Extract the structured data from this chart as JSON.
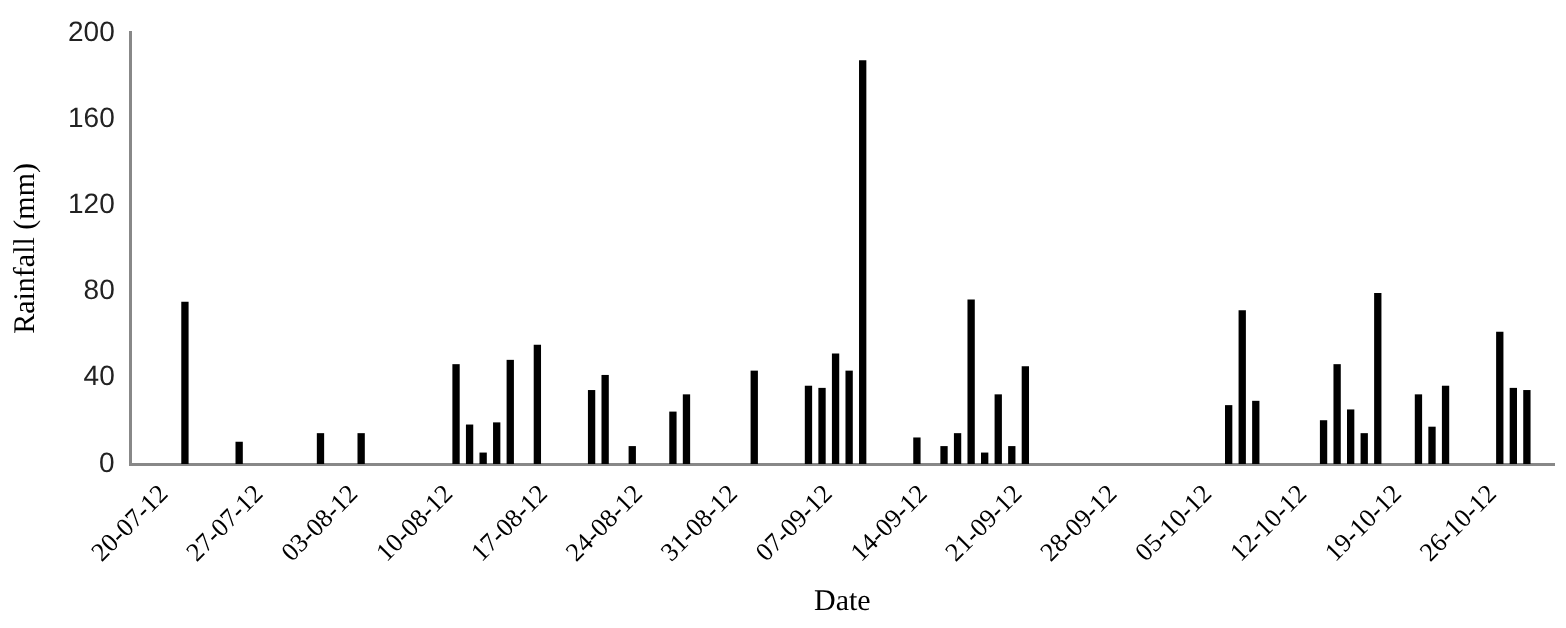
{
  "chart_data": {
    "type": "bar",
    "xlabel": "Date",
    "ylabel": "Rainfall (mm)",
    "x": [
      "--07-24",
      "--07-28",
      "--08-03",
      "--08-06",
      "--08-13",
      "--08-14",
      "--08-15",
      "--08-16",
      "--08-17",
      "--08-19",
      "--08-23",
      "--08-24",
      "--08-26",
      "--08-29",
      "--08-30",
      "--09-04",
      "--09-08",
      "--09-09",
      "--09-10",
      "--09-11",
      "--09-12",
      "--09-16",
      "--09-18",
      "--09-19",
      "--09-20",
      "--09-21",
      "--09-22",
      "--09-23",
      "--09-24",
      "--10-09",
      "--10-10",
      "--10-11",
      "--10-16",
      "--10-17",
      "--10-18",
      "--10-19",
      "--10-20",
      "--10-23",
      "--10-24",
      "--10-25",
      "--10-29",
      "--10-30",
      "--10-31"
    ],
    "values": [
      75,
      10,
      14,
      14,
      46,
      18,
      5,
      19,
      48,
      55,
      34,
      41,
      8,
      24,
      32,
      43,
      36,
      35,
      51,
      43,
      187,
      12,
      8,
      14,
      76,
      5,
      32,
      8,
      45,
      27,
      71,
      29,
      20,
      46,
      25,
      14,
      79,
      32,
      17,
      36,
      61,
      35,
      34
    ],
    "color": "#000000",
    "xlim": [
      "--07-20",
      "--11-02"
    ],
    "xticks": [
      {
        "value": "--07-20",
        "label": "20-07-12"
      },
      {
        "value": "--07-27",
        "label": "27-07-12"
      },
      {
        "value": "--08-03",
        "label": "03-08-12"
      },
      {
        "value": "--08-10",
        "label": "10-08-12"
      },
      {
        "value": "--08-17",
        "label": "17-08-12"
      },
      {
        "value": "--08-24",
        "label": "24-08-12"
      },
      {
        "value": "--08-31",
        "label": "31-08-12"
      },
      {
        "value": "--09-07",
        "label": "07-09-12"
      },
      {
        "value": "--09-14",
        "label": "14-09-12"
      },
      {
        "value": "--09-21",
        "label": "21-09-12"
      },
      {
        "value": "--09-28",
        "label": "28-09-12"
      },
      {
        "value": "--10-05",
        "label": "05-10-12"
      },
      {
        "value": "--10-12",
        "label": "12-10-12"
      },
      {
        "value": "--10-19",
        "label": "19-10-12"
      },
      {
        "value": "--10-26",
        "label": "26-10-12"
      }
    ],
    "ylim": [
      0,
      200
    ],
    "yticks": [
      0,
      40,
      80,
      120,
      160,
      200
    ],
    "grid": false,
    "legend": false
  }
}
